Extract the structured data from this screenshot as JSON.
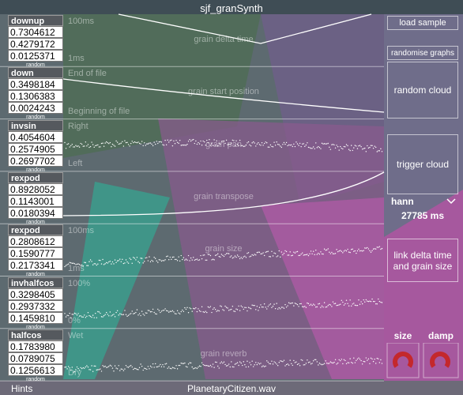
{
  "header": {
    "title": "sjf_granSynth"
  },
  "rows": [
    {
      "shape": "downup",
      "values": [
        "0.7304612",
        "0.4279172",
        "0.0125371"
      ],
      "random": "random",
      "top_label": "100ms",
      "bottom_label": "1ms",
      "title": "grain delta time"
    },
    {
      "shape": "down",
      "values": [
        "0.3498184",
        "0.1306383",
        "0.0024243"
      ],
      "random": "random",
      "top_label": "End of file",
      "bottom_label": "Beginning of file",
      "title": "grain start position"
    },
    {
      "shape": "invsin",
      "values": [
        "0.4054604",
        "0.2574905",
        "0.2697702"
      ],
      "random": "random",
      "top_label": "Right",
      "bottom_label": "Left",
      "title": "grain pan"
    },
    {
      "shape": "rexpod",
      "values": [
        "0.8928052",
        "0.1143001",
        "0.0180394"
      ],
      "random": "random",
      "title": "grain transpose"
    },
    {
      "shape": "rexpod",
      "values": [
        "0.2808612",
        "0.1590777",
        "0.2173341"
      ],
      "random": "random",
      "top_label": "100ms",
      "bottom_label": "1ms",
      "title": "grain size"
    },
    {
      "shape": "invhalfcos",
      "values": [
        "0.3298405",
        "0.2937332",
        "0.1459810"
      ],
      "random": "random",
      "top_label": "100%",
      "bottom_label": "0%"
    },
    {
      "shape": "halfcos",
      "values": [
        "0.1783980",
        "0.0789075",
        "0.1256613"
      ],
      "random": "random",
      "top_label": "Wet",
      "bottom_label": "Dry",
      "title": "grain reverb"
    }
  ],
  "side": {
    "load": "load sample",
    "randomise": "randomise graphs",
    "random_cloud": "random cloud",
    "trigger": "trigger cloud",
    "window": "hann",
    "duration": "27785 ms",
    "link": "link delta time and grain size",
    "size": "size",
    "damp": "damp"
  },
  "footer": {
    "hints": "Hints",
    "file": "PlanetaryCitizen.wav"
  }
}
